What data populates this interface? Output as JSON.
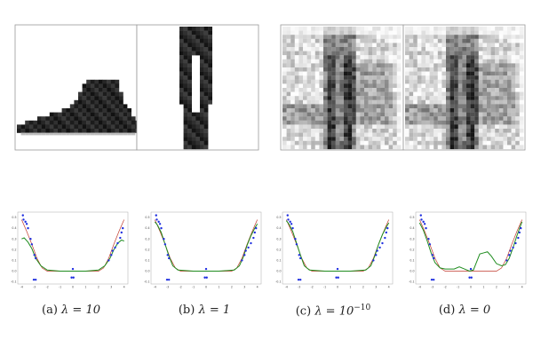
{
  "image_panels": [
    {
      "content": "ankle-boot",
      "style": "clean"
    },
    {
      "content": "trousers",
      "style": "clean"
    },
    {
      "content": "noisy-blend",
      "style": "noisy"
    },
    {
      "content": "noisy-blend",
      "style": "noisy"
    }
  ],
  "captions": [
    {
      "tag": "(a)",
      "body": "λ = 10"
    },
    {
      "tag": "(b)",
      "body": "λ = 1"
    },
    {
      "tag": "(c)",
      "body": "λ = 10",
      "sup": "−10"
    },
    {
      "tag": "(d)",
      "body": "λ = 0"
    }
  ],
  "chart_data": [
    {
      "type": "scatter",
      "x_ticks": [
        "-4",
        "-3",
        "-2",
        "-1",
        "0",
        "1",
        "2",
        "3",
        "4"
      ],
      "y_ticks": [
        "0.5",
        "0.4",
        "0.3",
        "0.2",
        "0.1",
        "0.0",
        "-0.1"
      ],
      "xlim": [
        -4.3,
        4.3
      ],
      "ylim": [
        -0.12,
        0.55
      ],
      "points": [
        [
          -3.9,
          0.52
        ],
        [
          -3.85,
          0.48
        ],
        [
          -3.7,
          0.46
        ],
        [
          -3.6,
          0.44
        ],
        [
          -3.5,
          0.4
        ],
        [
          -3.3,
          0.3
        ],
        [
          -3.2,
          0.25
        ],
        [
          -3.0,
          0.15
        ],
        [
          -2.9,
          0.12
        ],
        [
          -3.05,
          -0.08
        ],
        [
          -2.9,
          -0.08
        ],
        [
          0.0,
          0.02
        ],
        [
          0.05,
          -0.06
        ],
        [
          -0.1,
          -0.06
        ],
        [
          2.8,
          0.1
        ],
        [
          3.0,
          0.15
        ],
        [
          3.1,
          0.19
        ],
        [
          3.3,
          0.22
        ],
        [
          3.5,
          0.26
        ],
        [
          3.7,
          0.31
        ],
        [
          3.8,
          0.36
        ],
        [
          3.9,
          0.4
        ]
      ],
      "series": [
        {
          "color": "#c0392b",
          "points": [
            [
              -4,
              0.48
            ],
            [
              -3.6,
              0.37
            ],
            [
              -3.2,
              0.25
            ],
            [
              -2.8,
              0.12
            ],
            [
              -2.4,
              0.03
            ],
            [
              -2,
              0.0
            ],
            [
              2,
              0.0
            ],
            [
              2.4,
              0.03
            ],
            [
              2.8,
              0.12
            ],
            [
              3.2,
              0.25
            ],
            [
              3.6,
              0.37
            ],
            [
              4,
              0.48
            ]
          ]
        },
        {
          "color": "#1e8c1e",
          "points": [
            [
              -4,
              0.3
            ],
            [
              -3.8,
              0.31
            ],
            [
              -3.5,
              0.27
            ],
            [
              -3.2,
              0.21
            ],
            [
              -2.9,
              0.12
            ],
            [
              -2.5,
              0.05
            ],
            [
              -2,
              0.01
            ],
            [
              -1,
              0.0
            ],
            [
              0,
              0.0
            ],
            [
              1,
              0.0
            ],
            [
              2,
              0.01
            ],
            [
              2.5,
              0.05
            ],
            [
              2.9,
              0.12
            ],
            [
              3.2,
              0.2
            ],
            [
              3.5,
              0.26
            ],
            [
              3.8,
              0.29
            ],
            [
              4,
              0.28
            ]
          ]
        }
      ]
    },
    {
      "type": "scatter",
      "x_ticks": [
        "-4",
        "-3",
        "-2",
        "-1",
        "0",
        "1",
        "2",
        "3",
        "4"
      ],
      "y_ticks": [
        "0.5",
        "0.4",
        "0.3",
        "0.2",
        "0.1",
        "0.0",
        "-0.1"
      ],
      "xlim": [
        -4.3,
        4.3
      ],
      "ylim": [
        -0.12,
        0.55
      ],
      "points": [
        [
          -3.9,
          0.52
        ],
        [
          -3.85,
          0.48
        ],
        [
          -3.7,
          0.46
        ],
        [
          -3.6,
          0.44
        ],
        [
          -3.5,
          0.4
        ],
        [
          -3.3,
          0.3
        ],
        [
          -3.2,
          0.25
        ],
        [
          -3.0,
          0.15
        ],
        [
          -2.9,
          0.12
        ],
        [
          -3.05,
          -0.08
        ],
        [
          -2.9,
          -0.08
        ],
        [
          0.0,
          0.02
        ],
        [
          0.05,
          -0.06
        ],
        [
          -0.1,
          -0.06
        ],
        [
          2.8,
          0.1
        ],
        [
          3.0,
          0.15
        ],
        [
          3.1,
          0.19
        ],
        [
          3.3,
          0.22
        ],
        [
          3.5,
          0.26
        ],
        [
          3.7,
          0.31
        ],
        [
          3.8,
          0.36
        ],
        [
          3.9,
          0.4
        ]
      ],
      "series": [
        {
          "color": "#c0392b",
          "points": [
            [
              -4,
              0.48
            ],
            [
              -3.6,
              0.37
            ],
            [
              -3.2,
              0.25
            ],
            [
              -2.8,
              0.12
            ],
            [
              -2.4,
              0.03
            ],
            [
              -2,
              0.0
            ],
            [
              2,
              0.0
            ],
            [
              2.4,
              0.03
            ],
            [
              2.8,
              0.12
            ],
            [
              3.2,
              0.25
            ],
            [
              3.6,
              0.37
            ],
            [
              4,
              0.48
            ]
          ]
        },
        {
          "color": "#1e8c1e",
          "points": [
            [
              -4,
              0.46
            ],
            [
              -3.8,
              0.43
            ],
            [
              -3.5,
              0.36
            ],
            [
              -3.2,
              0.25
            ],
            [
              -2.9,
              0.14
            ],
            [
              -2.6,
              0.05
            ],
            [
              -2.2,
              0.01
            ],
            [
              -1,
              0.0
            ],
            [
              0,
              0.0
            ],
            [
              1,
              0.0
            ],
            [
              2.2,
              0.01
            ],
            [
              2.6,
              0.05
            ],
            [
              2.9,
              0.13
            ],
            [
              3.2,
              0.24
            ],
            [
              3.5,
              0.33
            ],
            [
              3.8,
              0.4
            ],
            [
              4,
              0.44
            ]
          ]
        }
      ]
    },
    {
      "type": "scatter",
      "x_ticks": [
        "-4",
        "-3",
        "-2",
        "-1",
        "0",
        "1",
        "2",
        "3",
        "4"
      ],
      "y_ticks": [
        "0.5",
        "0.4",
        "0.3",
        "0.2",
        "0.1",
        "0.0",
        "-0.1"
      ],
      "xlim": [
        -4.3,
        4.3
      ],
      "ylim": [
        -0.12,
        0.55
      ],
      "points": [
        [
          -3.9,
          0.52
        ],
        [
          -3.85,
          0.48
        ],
        [
          -3.7,
          0.46
        ],
        [
          -3.6,
          0.44
        ],
        [
          -3.5,
          0.4
        ],
        [
          -3.3,
          0.3
        ],
        [
          -3.2,
          0.25
        ],
        [
          -3.0,
          0.15
        ],
        [
          -2.9,
          0.12
        ],
        [
          -3.05,
          -0.08
        ],
        [
          -2.9,
          -0.08
        ],
        [
          0.0,
          0.02
        ],
        [
          0.05,
          -0.06
        ],
        [
          -0.1,
          -0.06
        ],
        [
          2.8,
          0.1
        ],
        [
          3.0,
          0.15
        ],
        [
          3.1,
          0.19
        ],
        [
          3.3,
          0.22
        ],
        [
          3.5,
          0.26
        ],
        [
          3.7,
          0.31
        ],
        [
          3.8,
          0.36
        ],
        [
          3.9,
          0.4
        ]
      ],
      "series": [
        {
          "color": "#c0392b",
          "points": [
            [
              -4,
              0.48
            ],
            [
              -3.6,
              0.37
            ],
            [
              -3.2,
              0.25
            ],
            [
              -2.8,
              0.12
            ],
            [
              -2.4,
              0.03
            ],
            [
              -2,
              0.0
            ],
            [
              2,
              0.0
            ],
            [
              2.4,
              0.03
            ],
            [
              2.8,
              0.12
            ],
            [
              3.2,
              0.25
            ],
            [
              3.6,
              0.37
            ],
            [
              4,
              0.48
            ]
          ]
        },
        {
          "color": "#1e8c1e",
          "points": [
            [
              -4,
              0.47
            ],
            [
              -3.8,
              0.44
            ],
            [
              -3.5,
              0.37
            ],
            [
              -3.2,
              0.26
            ],
            [
              -2.9,
              0.15
            ],
            [
              -2.6,
              0.05
            ],
            [
              -2.2,
              0.01
            ],
            [
              -1,
              0.0
            ],
            [
              0,
              0.0
            ],
            [
              1,
              0.0
            ],
            [
              2.2,
              0.01
            ],
            [
              2.6,
              0.05
            ],
            [
              2.9,
              0.14
            ],
            [
              3.2,
              0.25
            ],
            [
              3.5,
              0.34
            ],
            [
              3.8,
              0.41
            ],
            [
              4,
              0.45
            ]
          ]
        }
      ]
    },
    {
      "type": "scatter",
      "x_ticks": [
        "-4",
        "-3",
        "-2",
        "-1",
        "0",
        "1",
        "2",
        "3",
        "4"
      ],
      "y_ticks": [
        "0.5",
        "0.4",
        "0.3",
        "0.2",
        "0.1",
        "0.0",
        "-0.1"
      ],
      "xlim": [
        -4.3,
        4.3
      ],
      "ylim": [
        -0.12,
        0.55
      ],
      "points": [
        [
          -3.9,
          0.52
        ],
        [
          -3.85,
          0.48
        ],
        [
          -3.7,
          0.46
        ],
        [
          -3.6,
          0.44
        ],
        [
          -3.5,
          0.4
        ],
        [
          -3.3,
          0.3
        ],
        [
          -3.2,
          0.25
        ],
        [
          -3.0,
          0.15
        ],
        [
          -2.9,
          0.12
        ],
        [
          -3.05,
          -0.08
        ],
        [
          -2.9,
          -0.08
        ],
        [
          0.0,
          0.02
        ],
        [
          0.05,
          -0.06
        ],
        [
          -0.1,
          -0.06
        ],
        [
          2.8,
          0.1
        ],
        [
          3.0,
          0.15
        ],
        [
          3.1,
          0.19
        ],
        [
          3.3,
          0.22
        ],
        [
          3.5,
          0.26
        ],
        [
          3.7,
          0.31
        ],
        [
          3.8,
          0.36
        ],
        [
          3.9,
          0.4
        ]
      ],
      "series": [
        {
          "color": "#c0392b",
          "points": [
            [
              -4,
              0.48
            ],
            [
              -3.6,
              0.37
            ],
            [
              -3.2,
              0.25
            ],
            [
              -2.8,
              0.12
            ],
            [
              -2.4,
              0.03
            ],
            [
              -2,
              0.0
            ],
            [
              2,
              0.0
            ],
            [
              2.4,
              0.03
            ],
            [
              2.8,
              0.12
            ],
            [
              3.2,
              0.25
            ],
            [
              3.6,
              0.37
            ],
            [
              4,
              0.48
            ]
          ]
        },
        {
          "color": "#1e8c1e",
          "points": [
            [
              -4,
              0.45
            ],
            [
              -3.7,
              0.38
            ],
            [
              -3.4,
              0.28
            ],
            [
              -3.1,
              0.17
            ],
            [
              -2.8,
              0.08
            ],
            [
              -2.4,
              0.03
            ],
            [
              -2,
              0.02
            ],
            [
              -1.3,
              0.02
            ],
            [
              -0.9,
              0.04
            ],
            [
              -0.5,
              0.02
            ],
            [
              -0.1,
              0.0
            ],
            [
              0.2,
              0.01
            ],
            [
              0.5,
              0.1
            ],
            [
              0.7,
              0.16
            ],
            [
              1.0,
              0.17
            ],
            [
              1.3,
              0.18
            ],
            [
              1.6,
              0.14
            ],
            [
              2.0,
              0.07
            ],
            [
              2.4,
              0.05
            ],
            [
              2.7,
              0.06
            ],
            [
              3.0,
              0.12
            ],
            [
              3.3,
              0.22
            ],
            [
              3.6,
              0.33
            ],
            [
              3.9,
              0.43
            ],
            [
              4,
              0.46
            ]
          ]
        }
      ]
    }
  ]
}
